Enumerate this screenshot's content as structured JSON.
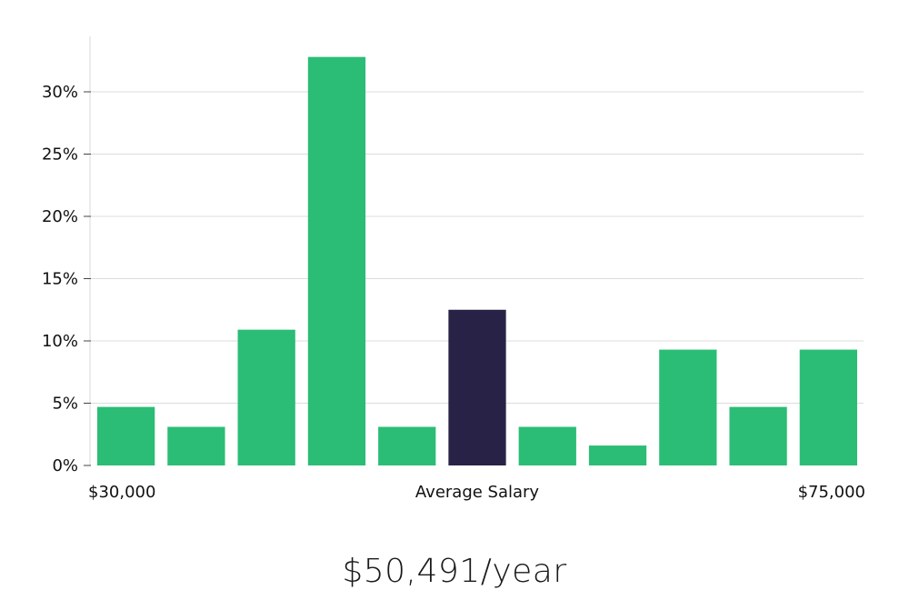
{
  "chart_data": {
    "type": "bar",
    "values": [
      4.7,
      3.1,
      10.9,
      32.8,
      3.1,
      12.5,
      3.1,
      1.6,
      9.3,
      4.7,
      9.3
    ],
    "highlight_index": 5,
    "ylim": [
      0,
      33
    ],
    "yticks": [
      0,
      5,
      10,
      15,
      20,
      25,
      30
    ],
    "ytick_labels": [
      "0%",
      "5%",
      "10%",
      "15%",
      "20%",
      "25%",
      "30%"
    ],
    "x_left_label": "$30,000",
    "x_center_label": "Average Salary",
    "x_right_label": "$75,000",
    "grid": true,
    "colors": {
      "bar": "#2bbd76",
      "highlight": "#282346",
      "grid": "#dcdcdc",
      "axis": "#d9d9d9"
    }
  },
  "summary": {
    "salary": "$50,491/year"
  }
}
